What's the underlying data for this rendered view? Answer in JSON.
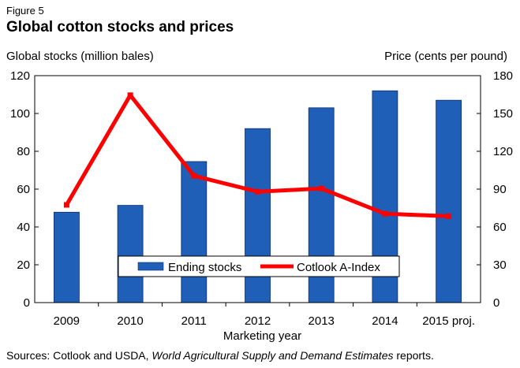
{
  "figure_label": "Figure 5",
  "title": "Global cotton stocks and prices",
  "source": {
    "prefix": "Sources: Cotlook and USDA, ",
    "italic": "World Agricultural Supply and Demand Estimates",
    "suffix": " reports."
  },
  "colors": {
    "bars": "#1f5fb8",
    "line": "#ff0000"
  },
  "chart_data": {
    "type": "bar",
    "categories": [
      "2009",
      "2010",
      "2011",
      "2012",
      "2013",
      "2014",
      "2015 proj."
    ],
    "xlabel": "Marketing year",
    "ylabel_left": "Global stocks (million bales)",
    "ylabel_right": "Price (cents per pound)",
    "ylim_left": [
      0,
      120
    ],
    "yticks_left": [
      0,
      20,
      40,
      60,
      80,
      100,
      120
    ],
    "ylim_right": [
      0,
      180
    ],
    "yticks_right": [
      0,
      30,
      60,
      90,
      120,
      150,
      180
    ],
    "grid": false,
    "legend_position": "bottom-center",
    "series": [
      {
        "name": "Ending stocks",
        "type": "bar",
        "axis": "left",
        "values": [
          47.8,
          51.4,
          74.6,
          92.0,
          103.0,
          112.0,
          107.0
        ]
      },
      {
        "name": "Cotlook A-Index",
        "type": "line",
        "axis": "right",
        "values": [
          77.5,
          164.5,
          100.5,
          88.0,
          90.5,
          70.5,
          68.5
        ]
      }
    ]
  }
}
